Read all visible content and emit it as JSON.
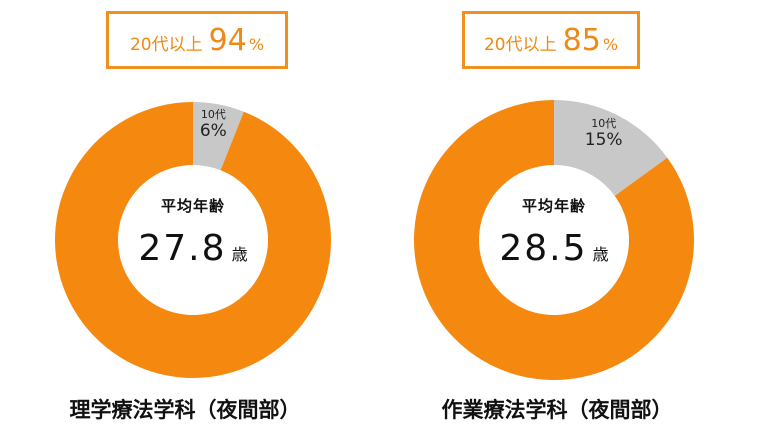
{
  "chart_data": [
    {
      "type": "pie",
      "title": "理学療法学科（夜間部）",
      "slices": [
        {
          "label": "10代",
          "value": 6
        },
        {
          "label": "20代以上",
          "value": 94
        }
      ],
      "callout": {
        "label": "20代以上",
        "value": "94",
        "unit": "%"
      },
      "teen": {
        "label": "10代",
        "value": "6%"
      },
      "center": {
        "label": "平均年齢",
        "value": "27.8",
        "unit": "歳"
      },
      "colors": {
        "adult": "#F5890F",
        "teen": "#C8C8C8"
      }
    },
    {
      "type": "pie",
      "title": "作業療法学科（夜間部）",
      "slices": [
        {
          "label": "10代",
          "value": 15
        },
        {
          "label": "20代以上",
          "value": 85
        }
      ],
      "callout": {
        "label": "20代以上",
        "value": "85",
        "unit": "%"
      },
      "teen": {
        "label": "10代",
        "value": "15%"
      },
      "center": {
        "label": "平均年齢",
        "value": "28.5",
        "unit": "歳"
      },
      "colors": {
        "adult": "#F5890F",
        "teen": "#C8C8C8"
      }
    }
  ]
}
